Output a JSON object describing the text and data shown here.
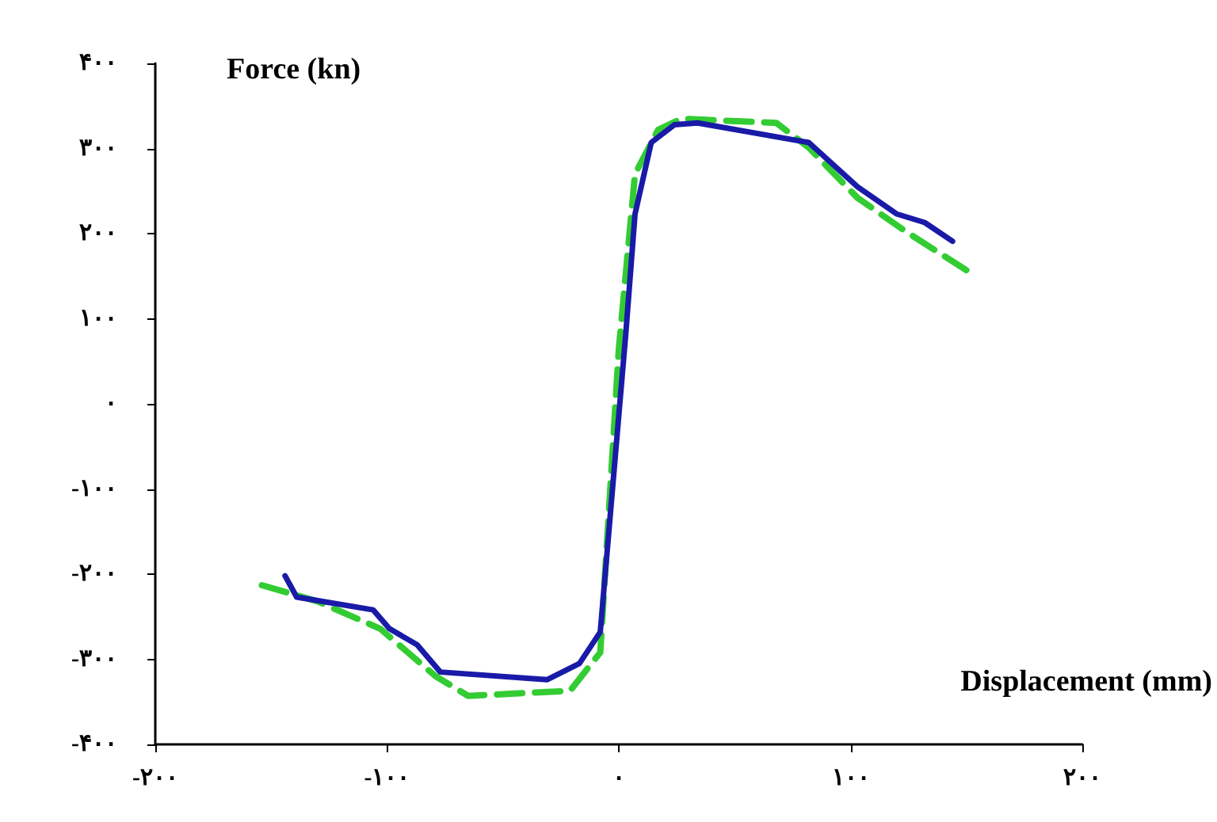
{
  "chart_data": {
    "type": "line",
    "xlabel": "Displacement (mm)",
    "ylabel": "Force (kn)",
    "xlim": [
      -200,
      200
    ],
    "ylim": [
      -400,
      400
    ],
    "xticks": [
      {
        "value": -200,
        "label": "-۲۰۰"
      },
      {
        "value": -100,
        "label": "-۱۰۰"
      },
      {
        "value": 0,
        "label": "۰"
      },
      {
        "value": 100,
        "label": "۱۰۰"
      },
      {
        "value": 200,
        "label": "۲۰۰"
      }
    ],
    "yticks": [
      {
        "value": -400,
        "label": "-۴۰۰"
      },
      {
        "value": -300,
        "label": "-۳۰۰"
      },
      {
        "value": -200,
        "label": "-۲۰۰"
      },
      {
        "value": -100,
        "label": "-۱۰۰"
      },
      {
        "value": 0,
        "label": "۰"
      },
      {
        "value": 100,
        "label": "۱۰۰"
      },
      {
        "value": 200,
        "label": "۲۰۰"
      },
      {
        "value": 300,
        "label": "۳۰۰"
      },
      {
        "value": 400,
        "label": "۴۰۰"
      }
    ],
    "grid": false,
    "marker": "none",
    "series": [
      {
        "color": "#33cc33",
        "line_style": "dashed",
        "x": [
          -154,
          -130,
          -103,
          -79,
          -65,
          -21,
          -8,
          0,
          7,
          17,
          27,
          68,
          82,
          103,
          123,
          150
        ],
        "values": [
          -213,
          -232,
          -264,
          -320,
          -343,
          -337,
          -292,
          64,
          270,
          322,
          335,
          330,
          301,
          242,
          204,
          157
        ]
      },
      {
        "color": "#1a1aa8",
        "line_style": "solid",
        "x": [
          -144,
          -139,
          -106,
          -99,
          -87,
          -77,
          -31,
          -17,
          -8,
          3,
          7,
          14,
          24,
          34,
          82,
          103,
          120,
          132,
          144
        ],
        "values": [
          -202,
          -227,
          -242,
          -264,
          -283,
          -315,
          -324,
          -305,
          -268,
          82,
          223,
          307,
          328,
          330,
          307,
          255,
          223,
          213,
          191
        ]
      }
    ]
  }
}
